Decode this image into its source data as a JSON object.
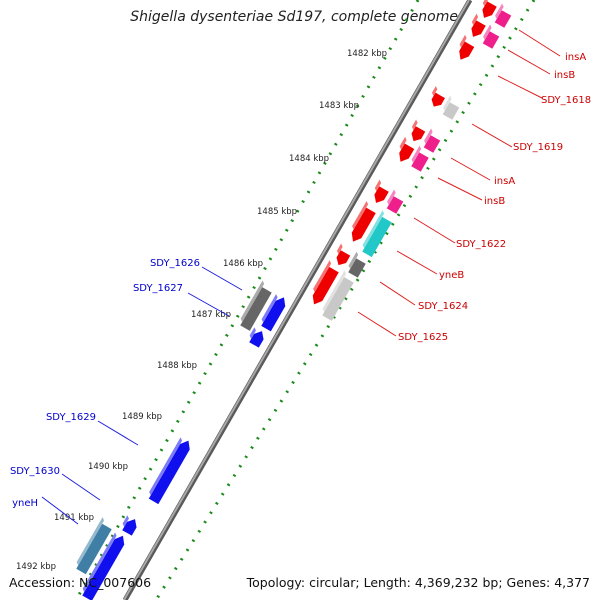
{
  "title": "Shigella dysenteriae Sd197, complete genome",
  "accession": "Accession: NC_007606",
  "summary": "Topology: circular; Length: 4,369,232 bp; Genes: 4,377",
  "ticks": [
    "1482 kbp",
    "1483 kbp",
    "1484 kbp",
    "1485 kbp",
    "1486 kbp",
    "1487 kbp",
    "1488 kbp",
    "1489 kbp",
    "1490 kbp",
    "1491 kbp",
    "1492 kbp"
  ],
  "colors": {
    "red": "#ee0000",
    "pink": "#ee1f8a",
    "gray_dark": "#666666",
    "gray_light": "#c8c8c8",
    "cyan": "#22c8c8",
    "blue": "#1010ee",
    "steel": "#3f7fa6",
    "dots": "#1a8a1a",
    "backbone": "#8a8a8a",
    "label_red": "#cc0000",
    "label_blue": "#0000cc"
  },
  "gene_labels_right": [
    {
      "text": "insA",
      "color": "red"
    },
    {
      "text": "insB",
      "color": "red"
    },
    {
      "text": "SDY_1618",
      "color": "red"
    },
    {
      "text": "SDY_1619",
      "color": "red"
    },
    {
      "text": "insA",
      "color": "red"
    },
    {
      "text": "insB",
      "color": "red"
    },
    {
      "text": "SDY_1622",
      "color": "red"
    },
    {
      "text": "yneB",
      "color": "red"
    },
    {
      "text": "SDY_1624",
      "color": "red"
    },
    {
      "text": "SDY_1625",
      "color": "red"
    }
  ],
  "gene_labels_left": [
    {
      "text": "SDY_1626",
      "color": "blue"
    },
    {
      "text": "SDY_1627",
      "color": "blue"
    },
    {
      "text": "SDY_1629",
      "color": "blue"
    },
    {
      "text": "SDY_1630",
      "color": "blue"
    },
    {
      "text": "yneH",
      "color": "blue"
    }
  ]
}
